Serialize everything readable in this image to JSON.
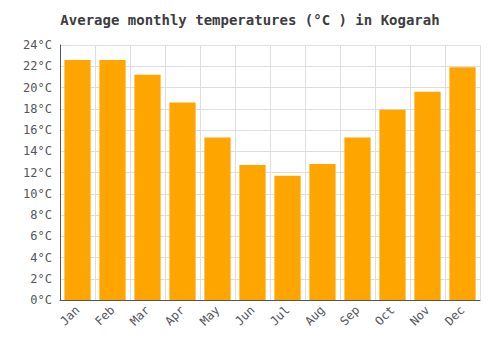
{
  "chart_data": {
    "type": "bar",
    "title": "Average monthly temperatures (°C ) in Kogarah",
    "categories": [
      "Jan",
      "Feb",
      "Mar",
      "Apr",
      "May",
      "Jun",
      "Jul",
      "Aug",
      "Sep",
      "Oct",
      "Nov",
      "Dec"
    ],
    "values": [
      22.6,
      22.6,
      21.2,
      18.6,
      15.3,
      12.7,
      11.7,
      12.8,
      15.3,
      17.9,
      19.6,
      21.9
    ],
    "color": "#FFA500",
    "ylim": [
      0,
      24
    ],
    "yticks": [
      {
        "value": 0,
        "label": "0°C"
      },
      {
        "value": 2,
        "label": "2°C"
      },
      {
        "value": 4,
        "label": "4°C"
      },
      {
        "value": 6,
        "label": "6°C"
      },
      {
        "value": 8,
        "label": "8°C"
      },
      {
        "value": 10,
        "label": "10°C"
      },
      {
        "value": 12,
        "label": "12°C"
      },
      {
        "value": 14,
        "label": "14°C"
      },
      {
        "value": 16,
        "label": "16°C"
      },
      {
        "value": 18,
        "label": "18°C"
      },
      {
        "value": 20,
        "label": "20°C"
      },
      {
        "value": 22,
        "label": "22°C"
      },
      {
        "value": 24,
        "label": "24°C"
      }
    ],
    "grid": true
  }
}
